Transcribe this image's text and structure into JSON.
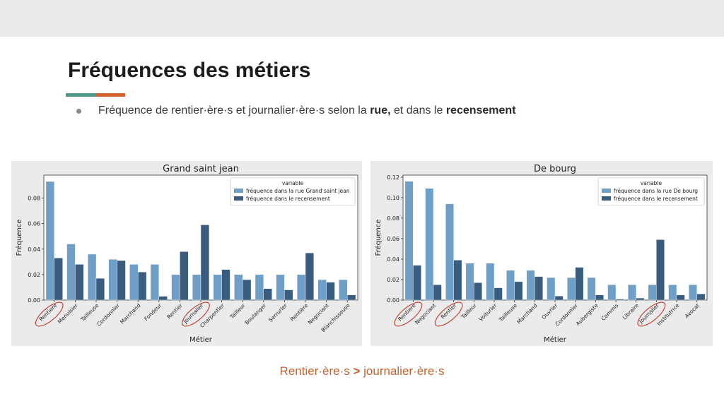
{
  "slide": {
    "title": "Fréquences des métiers",
    "accent_colors": [
      "#4d9a8c",
      "#d3622e"
    ],
    "bullet": {
      "pre": "Fréquence de rentier·ère·s et journalier·ère·s selon la ",
      "bold1": "rue,",
      "mid": " et dans le ",
      "bold2": "recensement"
    },
    "conclusion": {
      "left": "Rentier·ère·s ",
      "sign": ">",
      "right": " journalier·ère·s",
      "color": "#c7632b"
    }
  },
  "chart_data": [
    {
      "type": "bar",
      "title": "Grand saint jean",
      "xlabel": "Métier",
      "ylabel": "Fréquence",
      "ylim": [
        0,
        0.098
      ],
      "yticks": [
        "0.00",
        "0.02",
        "0.04",
        "0.06",
        "0.08"
      ],
      "ytick_values": [
        0,
        0.02,
        0.04,
        0.06,
        0.08
      ],
      "categories": [
        "Rentiere",
        "Menuisier",
        "Tailleuse",
        "Cordonnier",
        "Marchand",
        "Fondeur",
        "Rentier",
        "Journalier",
        "Charpentier",
        "Tailleur",
        "Boulanger",
        "Serrurier",
        "Rentière",
        "Negociant",
        "Blanchisseuse"
      ],
      "series": [
        {
          "name": "fréquence dans la rue Grand saint jean",
          "color": "#6f9fc6",
          "values": [
            0.093,
            0.044,
            0.036,
            0.032,
            0.028,
            0.028,
            0.02,
            0.02,
            0.02,
            0.02,
            0.02,
            0.02,
            0.02,
            0.016,
            0.016
          ]
        },
        {
          "name": "fréquence dans le recensement",
          "color": "#3a5d7f",
          "values": [
            0.033,
            0.028,
            0.017,
            0.031,
            0.022,
            0.003,
            0.038,
            0.059,
            0.024,
            0.016,
            0.009,
            0.008,
            0.037,
            0.014,
            0.004
          ]
        }
      ],
      "legend_title": "variable",
      "legend_position": "top-right",
      "grid": false,
      "circled_categories": [
        "Rentiere",
        "Journalier"
      ]
    },
    {
      "type": "bar",
      "title": "De bourg",
      "xlabel": "Métier",
      "ylabel": "Fréquence",
      "ylim": [
        0,
        0.122
      ],
      "yticks": [
        "0.00",
        "0.02",
        "0.04",
        "0.06",
        "0.08",
        "0.10",
        "0.12"
      ],
      "ytick_values": [
        0,
        0.02,
        0.04,
        0.06,
        0.08,
        0.1,
        0.12
      ],
      "categories": [
        "Rentiere",
        "Negociant",
        "Rentier",
        "Tailleur",
        "Voiturier",
        "Tailleuse",
        "Marchand",
        "Ouvrier",
        "Cordonnier",
        "Aubergiste",
        "Commis",
        "Libraire",
        "Journalier",
        "Institutrice",
        "Avocat"
      ],
      "series": [
        {
          "name": "fréquence dans la rue De bourg",
          "color": "#6f9fc6",
          "values": [
            0.116,
            0.109,
            0.094,
            0.036,
            0.036,
            0.029,
            0.029,
            0.022,
            0.022,
            0.022,
            0.015,
            0.015,
            0.015,
            0.015,
            0.015
          ]
        },
        {
          "name": "fréquence dans le recensement",
          "color": "#3a5d7f",
          "values": [
            0.034,
            0.015,
            0.039,
            0.017,
            0.012,
            0.018,
            0.023,
            0.004,
            0.032,
            0.005,
            0.001,
            0.002,
            0.059,
            0.005,
            0.006
          ]
        }
      ],
      "legend_title": "variable",
      "legend_position": "top-right",
      "grid": false,
      "circled_categories": [
        "Rentiere",
        "Rentier",
        "Journalier"
      ]
    }
  ]
}
